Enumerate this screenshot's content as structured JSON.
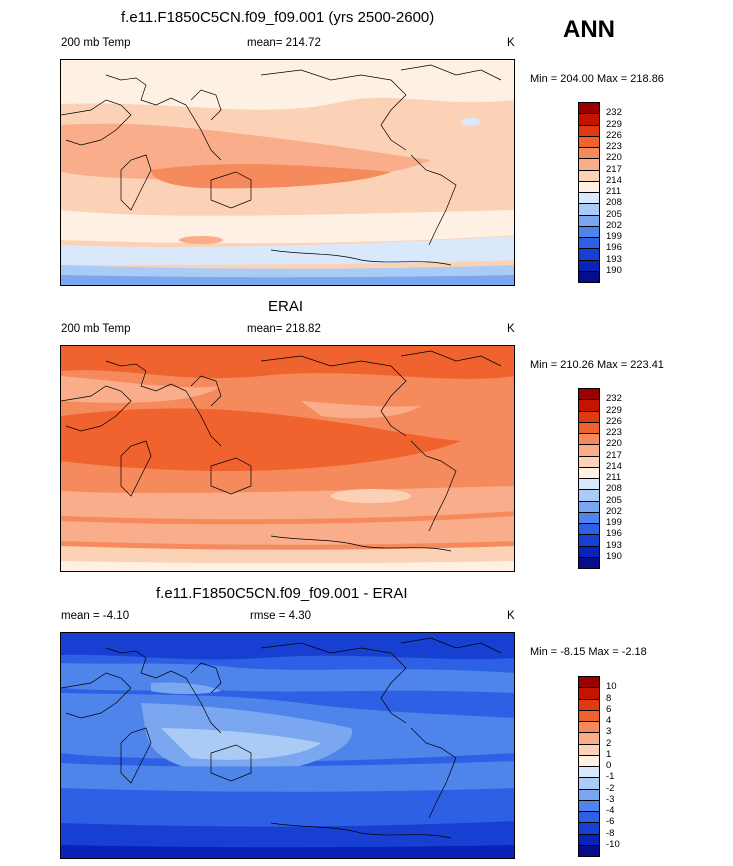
{
  "season": "ANN",
  "panels": [
    {
      "title": "f.e11.F1850C5CN.f09_f09.001 (yrs 2500-2600)",
      "left_label": "200 mb Temp",
      "center_label": "mean= 214.72",
      "units": "K",
      "minmax": "Min = 204.00 Max = 218.86",
      "colorbar_labels": [
        "232",
        "229",
        "226",
        "223",
        "220",
        "217",
        "214",
        "211",
        "208",
        "205",
        "202",
        "199",
        "196",
        "193",
        "190"
      ],
      "colorbar_colors": [
        "#9b0000",
        "#c41400",
        "#e03a10",
        "#f0622e",
        "#f58a5c",
        "#f9ad8a",
        "#fcd2b6",
        "#fff0e4",
        "#d9e9fb",
        "#aacbf5",
        "#7aa7ef",
        "#4f84ea",
        "#2d60e4",
        "#1740d2",
        "#0b22b8",
        "#060c8c"
      ]
    },
    {
      "title": "ERAI",
      "left_label": "200 mb Temp",
      "center_label": "mean= 218.82",
      "units": "K",
      "minmax": "Min = 210.26 Max = 223.41",
      "colorbar_labels": [
        "232",
        "229",
        "226",
        "223",
        "220",
        "217",
        "214",
        "211",
        "208",
        "205",
        "202",
        "199",
        "196",
        "193",
        "190"
      ],
      "colorbar_colors": [
        "#9b0000",
        "#c41400",
        "#e03a10",
        "#f0622e",
        "#f58a5c",
        "#f9ad8a",
        "#fcd2b6",
        "#fff0e4",
        "#d9e9fb",
        "#aacbf5",
        "#7aa7ef",
        "#4f84ea",
        "#2d60e4",
        "#1740d2",
        "#0b22b8",
        "#060c8c"
      ]
    },
    {
      "title": "f.e11.F1850C5CN.f09_f09.001 - ERAI",
      "left_label": "mean =  -4.10",
      "center_label": "rmse =   4.30",
      "units": "K",
      "minmax": "Min =  -8.15 Max =  -2.18",
      "colorbar_labels": [
        "10",
        "8",
        "6",
        "4",
        "3",
        "2",
        "1",
        "0",
        "-1",
        "-2",
        "-3",
        "-4",
        "-6",
        "-8",
        "-10"
      ],
      "colorbar_colors": [
        "#9b0000",
        "#c41400",
        "#e03a10",
        "#f0622e",
        "#f58a5c",
        "#f9ad8a",
        "#fcd2b6",
        "#fff0e4",
        "#d9e9fb",
        "#aacbf5",
        "#7aa7ef",
        "#4f84ea",
        "#2d60e4",
        "#1740d2",
        "#0b22b8",
        "#060c8c"
      ]
    }
  ]
}
